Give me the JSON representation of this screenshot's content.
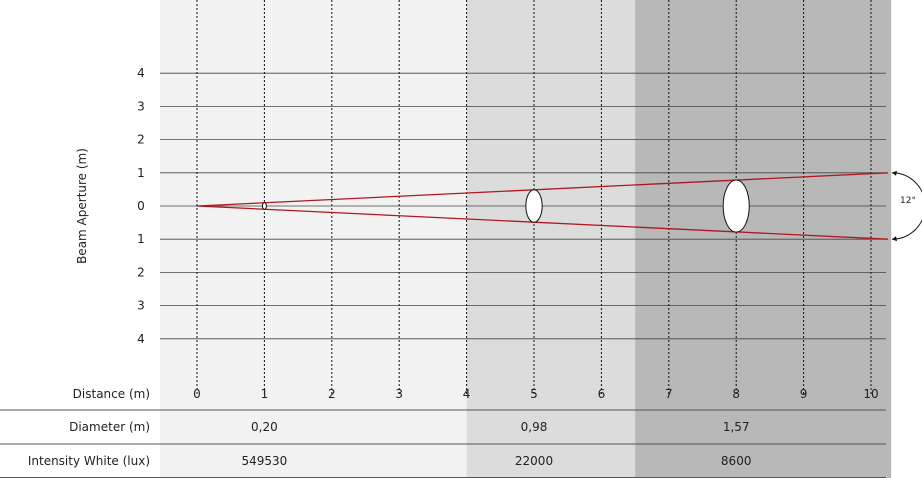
{
  "chart_data": {
    "type": "beam-diagram",
    "ylabel": "Beam Aperture (m)",
    "xlabel": "Distance (m)",
    "x_ticks": [
      0,
      1,
      2,
      3,
      4,
      5,
      6,
      7,
      8,
      9,
      10
    ],
    "y_ticks": [
      "4",
      "3",
      "2",
      "1",
      "0",
      "1",
      "2",
      "3",
      "4"
    ],
    "y_values": [
      4,
      3,
      2,
      1,
      0,
      -1,
      -2,
      -3,
      -4
    ],
    "beam_angle_label": "12°",
    "beam": {
      "origin": [
        0,
        0
      ],
      "end_distance": 10,
      "end_half_aperture": 1.0
    },
    "bands": [
      {
        "from": 0,
        "to": 4,
        "color": "#f2f2f2"
      },
      {
        "from": 4,
        "to": 6.5,
        "color": "#dcdcdc"
      },
      {
        "from": 6.5,
        "to": 10.3,
        "color": "#b8b8b8"
      }
    ],
    "ellipses": [
      {
        "distance": 1,
        "diameter": 0.2
      },
      {
        "distance": 5,
        "diameter": 0.98
      },
      {
        "distance": 8,
        "diameter": 1.57
      }
    ],
    "table": {
      "rows": [
        {
          "label": "Diameter (m)",
          "values": [
            "0,20",
            "0,98",
            "1,57"
          ]
        },
        {
          "label": "Intensity White (lux)",
          "values": [
            "549530",
            "22000",
            "8600"
          ]
        }
      ]
    },
    "beam_color": "#b0171f"
  }
}
